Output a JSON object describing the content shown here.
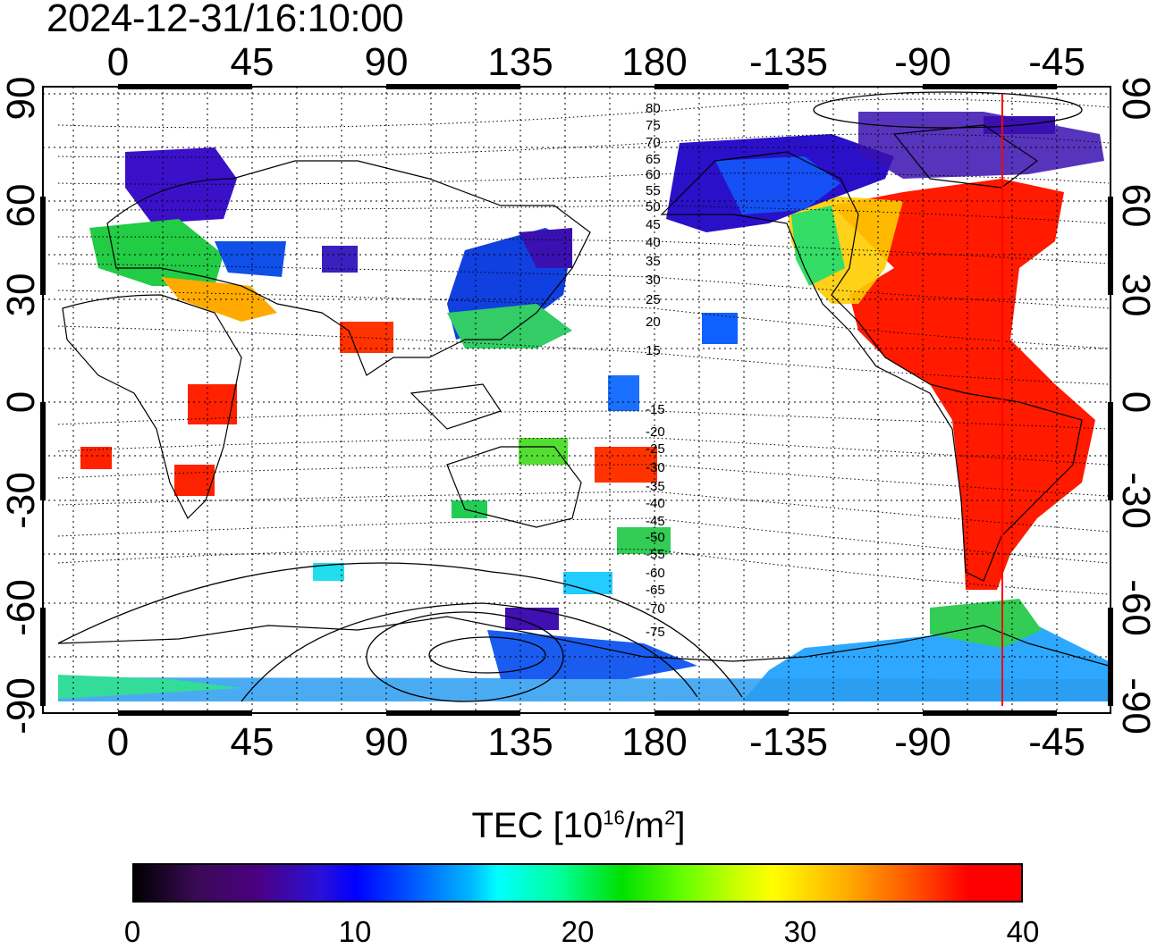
{
  "timestamp": "2024-12-31/16:10:00",
  "map": {
    "top_lon_ticks": [
      "0",
      "45",
      "90",
      "135",
      "180",
      "-135",
      "-90",
      "-45"
    ],
    "bottom_lon_ticks": [
      "0",
      "45",
      "90",
      "135",
      "180",
      "-135",
      "-90",
      "-45"
    ],
    "left_lat_ticks": [
      "90",
      "60",
      "30",
      "0",
      "-30",
      "-60",
      "-90"
    ],
    "right_lat_ticks": [
      "90",
      "60",
      "30",
      "0",
      "-30",
      "-60",
      "-90"
    ],
    "contour_labels": [
      "80",
      "75",
      "70",
      "65",
      "60",
      "55",
      "50",
      "45",
      "40",
      "35",
      "30",
      "25",
      "20",
      "15",
      "-15",
      "-20",
      "-25",
      "-30",
      "-35",
      "-40",
      "-45",
      "-50",
      "-55",
      "-60",
      "-65",
      "-70",
      "-75"
    ],
    "terminator_color": "#ff0000",
    "grid": "dotted"
  },
  "colorbar": {
    "title_prefix": "TEC  [10",
    "title_exp1": "16",
    "title_mid": "/m",
    "title_exp2": "2",
    "title_suffix": "]",
    "ticks": [
      "0",
      "10",
      "20",
      "30",
      "40"
    ],
    "min": 0,
    "max": 40
  }
}
